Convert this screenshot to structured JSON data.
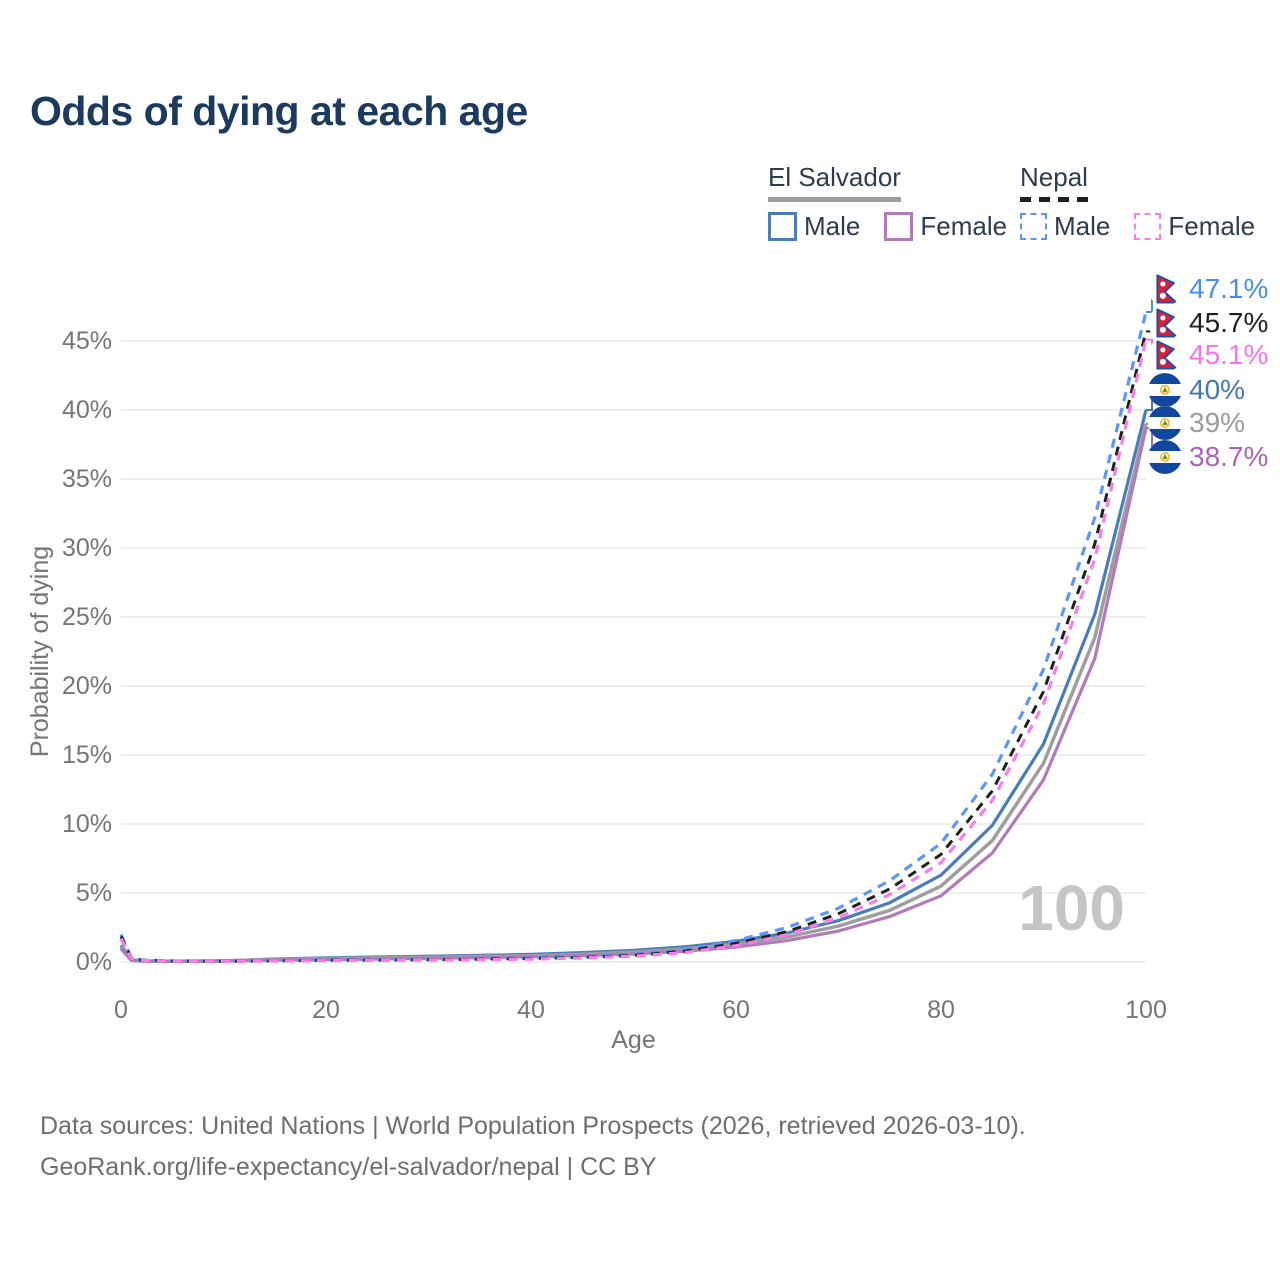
{
  "title": "Odds of dying at each age",
  "legend": {
    "groups": [
      {
        "label": "El Salvador",
        "line_style": "solid",
        "underline_color": "#9e9e9e",
        "items": [
          {
            "label": "Male",
            "color": "#4a7cb8"
          },
          {
            "label": "Female",
            "color": "#b279bb"
          }
        ]
      },
      {
        "label": "Nepal",
        "line_style": "dashed",
        "underline_color": "#1f1f1f",
        "items": [
          {
            "label": "Male",
            "color": "#5b97f7"
          },
          {
            "label": "Female",
            "color": "#f97ce9"
          }
        ]
      }
    ]
  },
  "axes": {
    "x_label": "Age",
    "y_label": "Probability of dying",
    "x_ticks": [
      0,
      20,
      40,
      60,
      80,
      100
    ],
    "y_ticks": [
      0,
      5,
      10,
      15,
      20,
      25,
      30,
      35,
      40,
      45
    ],
    "y_tick_suffix": "%",
    "x_range": [
      0,
      100
    ],
    "grid": true
  },
  "watermark": "100",
  "chart_data": {
    "type": "line",
    "title": "Odds of dying at each age",
    "xlabel": "Age",
    "ylabel": "Probability of dying",
    "ylim": [
      0,
      49
    ],
    "x": [
      0,
      1,
      2,
      5,
      10,
      15,
      20,
      25,
      30,
      35,
      40,
      45,
      50,
      55,
      60,
      65,
      70,
      75,
      80,
      85,
      90,
      95,
      100
    ],
    "series": [
      {
        "key": "es_male",
        "name": "El Salvador — Male",
        "country": "El Salvador",
        "sex": "Male",
        "color": "#4a7cb8",
        "dash": null,
        "width": 3.2,
        "values": [
          1.2,
          0.16,
          0.08,
          0.06,
          0.09,
          0.22,
          0.3,
          0.36,
          0.42,
          0.48,
          0.55,
          0.68,
          0.85,
          1.1,
          1.5,
          2.1,
          3.0,
          4.3,
          6.3,
          9.9,
          15.8,
          25.2,
          40.0
        ],
        "end_value": 40.0
      },
      {
        "key": "es_overall",
        "name": "El Salvador — Both sexes",
        "country": "El Salvador",
        "sex": "Both",
        "color": "#9e9e9e",
        "dash": null,
        "width": 3.5,
        "values": [
          1.05,
          0.14,
          0.07,
          0.05,
          0.08,
          0.18,
          0.25,
          0.3,
          0.35,
          0.4,
          0.46,
          0.56,
          0.72,
          0.95,
          1.3,
          1.82,
          2.6,
          3.75,
          5.5,
          8.8,
          14.4,
          23.5,
          39.0
        ],
        "end_value": 39.0
      },
      {
        "key": "es_female",
        "name": "El Salvador — Female",
        "country": "El Salvador",
        "sex": "Female",
        "color": "#b279bb",
        "dash": null,
        "width": 3.2,
        "values": [
          0.95,
          0.13,
          0.06,
          0.05,
          0.07,
          0.13,
          0.18,
          0.22,
          0.27,
          0.32,
          0.38,
          0.46,
          0.58,
          0.78,
          1.08,
          1.55,
          2.25,
          3.3,
          4.8,
          7.9,
          13.2,
          22.0,
          38.7
        ],
        "end_value": 38.7
      },
      {
        "key": "nepal_male",
        "name": "Nepal — Male",
        "country": "Nepal",
        "sex": "Male",
        "color": "#5b97f7",
        "dash": "9 7",
        "width": 3.2,
        "values": [
          2.0,
          0.3,
          0.15,
          0.08,
          0.06,
          0.1,
          0.14,
          0.16,
          0.19,
          0.23,
          0.28,
          0.38,
          0.55,
          0.9,
          1.55,
          2.5,
          3.9,
          5.9,
          8.6,
          13.6,
          21.2,
          32.2,
          47.1
        ],
        "end_value": 47.1
      },
      {
        "key": "nepal_overall",
        "name": "Nepal — Both sexes",
        "country": "Nepal",
        "sex": "Both",
        "color": "#1f1f1f",
        "dash": "9 7",
        "width": 3.0,
        "values": [
          1.85,
          0.28,
          0.13,
          0.07,
          0.05,
          0.08,
          0.12,
          0.14,
          0.16,
          0.2,
          0.25,
          0.33,
          0.48,
          0.78,
          1.35,
          2.2,
          3.5,
          5.3,
          7.8,
          12.4,
          19.6,
          30.3,
          45.7
        ],
        "end_value": 45.7
      },
      {
        "key": "nepal_female",
        "name": "Nepal — Female",
        "country": "Nepal",
        "sex": "Female",
        "color": "#f97ce9",
        "dash": "9 7",
        "width": 3.2,
        "values": [
          1.7,
          0.26,
          0.12,
          0.06,
          0.05,
          0.07,
          0.1,
          0.12,
          0.14,
          0.17,
          0.21,
          0.29,
          0.42,
          0.68,
          1.18,
          1.98,
          3.2,
          4.9,
          7.2,
          11.7,
          18.7,
          29.2,
          45.1
        ],
        "end_value": 45.1
      }
    ]
  },
  "end_labels": [
    {
      "series": "nepal_male",
      "label": "47.1%",
      "value": 47.1,
      "color": "#4a8df0",
      "flag": "nepal-flag"
    },
    {
      "series": "nepal_overall",
      "label": "45.7%",
      "value": 45.7,
      "color": "#1f1f1f",
      "flag": "nepal-flag"
    },
    {
      "series": "nepal_female",
      "label": "45.1%",
      "value": 45.1,
      "color": "#f873e8",
      "flag": "nepal-flag"
    },
    {
      "series": "es_male",
      "label": "40%",
      "value": 40.0,
      "color": "#4377b8",
      "flag": "el-salvador-flag"
    },
    {
      "series": "es_overall",
      "label": "39%",
      "value": 39.0,
      "color": "#9b9b9b",
      "flag": "el-salvador-flag"
    },
    {
      "series": "es_female",
      "label": "38.7%",
      "value": 38.7,
      "color": "#a963b8",
      "flag": "el-salvador-flag"
    }
  ],
  "footer": {
    "line1": "Data sources: United Nations | World Population Prospects (2026, retrieved 2026-03-10).",
    "line2": "GeoRank.org/life-expectancy/el-salvador/nepal | CC BY"
  },
  "colors": {
    "title": "#1c3a5e",
    "axis_text": "#757575",
    "gridline": "#e9e9e9",
    "watermark": "#c5c5c5",
    "footer_text": "#6e6e6e"
  }
}
